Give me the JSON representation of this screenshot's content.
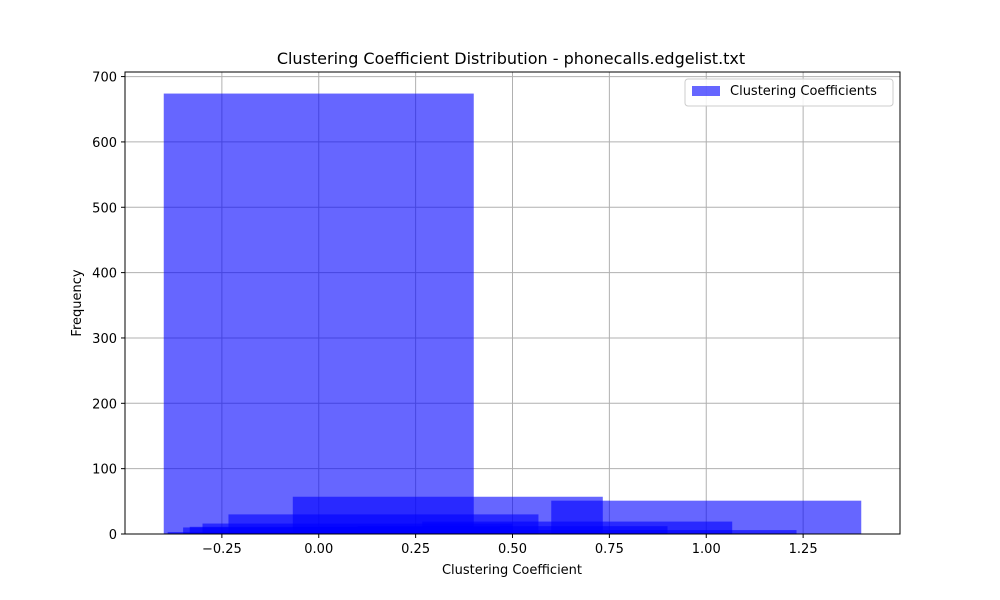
{
  "chart_data": {
    "type": "bar",
    "title": "Clustering Coefficient Distribution - phonecalls.edgelist.txt",
    "xlabel": "Clustering Coefficient",
    "ylabel": "Frequency",
    "xlim": [
      -0.5,
      1.5
    ],
    "ylim": [
      0,
      707
    ],
    "x_ticks": [
      -0.25,
      0.0,
      0.25,
      0.5,
      0.75,
      1.0,
      1.25
    ],
    "x_tick_labels": [
      "−0.25",
      "0.00",
      "0.25",
      "0.50",
      "0.75",
      "1.00",
      "1.25"
    ],
    "y_ticks": [
      0,
      100,
      200,
      300,
      400,
      500,
      600,
      700
    ],
    "y_tick_labels": [
      "0",
      "100",
      "200",
      "300",
      "400",
      "500",
      "600",
      "700"
    ],
    "grid": true,
    "legend_position": "top-right",
    "bar_color": "#0000ff",
    "bar_opacity": 0.6,
    "series": [
      {
        "name": "Clustering Coefficients",
        "bars": [
          {
            "x0": -0.4,
            "x1": 0.4,
            "height": 674
          },
          {
            "x0": -0.067,
            "x1": 0.733,
            "height": 57
          },
          {
            "x0": 0.6,
            "x1": 1.4,
            "height": 51
          },
          {
            "x0": -0.233,
            "x1": 0.567,
            "height": 30
          },
          {
            "x0": 0.267,
            "x1": 1.067,
            "height": 19
          },
          {
            "x0": -0.3,
            "x1": 0.5,
            "height": 16
          },
          {
            "x0": 0.1,
            "x1": 0.9,
            "height": 12
          },
          {
            "x0": -0.333,
            "x1": 0.467,
            "height": 11
          },
          {
            "x0": -0.35,
            "x1": 0.45,
            "height": 10
          },
          {
            "x0": 0.433,
            "x1": 1.233,
            "height": 6
          },
          {
            "x0": -0.39,
            "x1": 0.41,
            "height": 3
          }
        ]
      }
    ]
  }
}
